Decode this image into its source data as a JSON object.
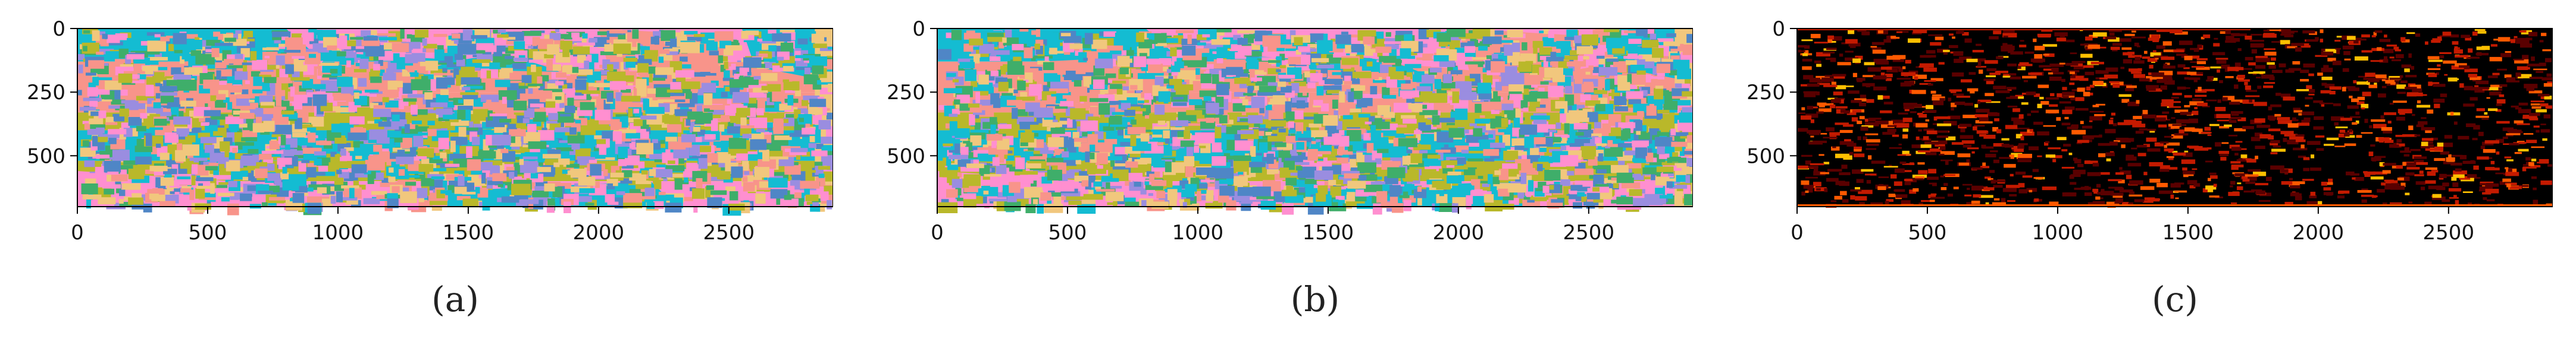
{
  "panels": [
    {
      "id": "a",
      "caption": "(a)",
      "kind": "segmentation-map",
      "x_ticks": [
        "0",
        "500",
        "1000",
        "1500",
        "2000",
        "2500"
      ],
      "y_ticks": [
        "0",
        "250",
        "500"
      ],
      "colors": [
        "#ff8fd0",
        "#f8948a",
        "#14bcd2",
        "#b9b82a",
        "#4f86c6",
        "#f1c77d"
      ]
    },
    {
      "id": "b",
      "caption": "(b)",
      "kind": "segmentation-map",
      "x_ticks": [
        "0",
        "500",
        "1000",
        "1500",
        "2000",
        "2500"
      ],
      "y_ticks": [
        "0",
        "250",
        "500"
      ],
      "colors": [
        "#ff8fd0",
        "#f8948a",
        "#14bcd2",
        "#b9b82a",
        "#4f86c6",
        "#f1c77d"
      ]
    },
    {
      "id": "c",
      "caption": "(c)",
      "kind": "heatmap",
      "x_ticks": [
        "0",
        "500",
        "1000",
        "1500",
        "2000",
        "2500"
      ],
      "y_ticks": [
        "0",
        "250",
        "500"
      ],
      "colors": [
        "#000000",
        "#5a0000",
        "#c41a00",
        "#ff5a00",
        "#ffc000"
      ]
    }
  ]
}
